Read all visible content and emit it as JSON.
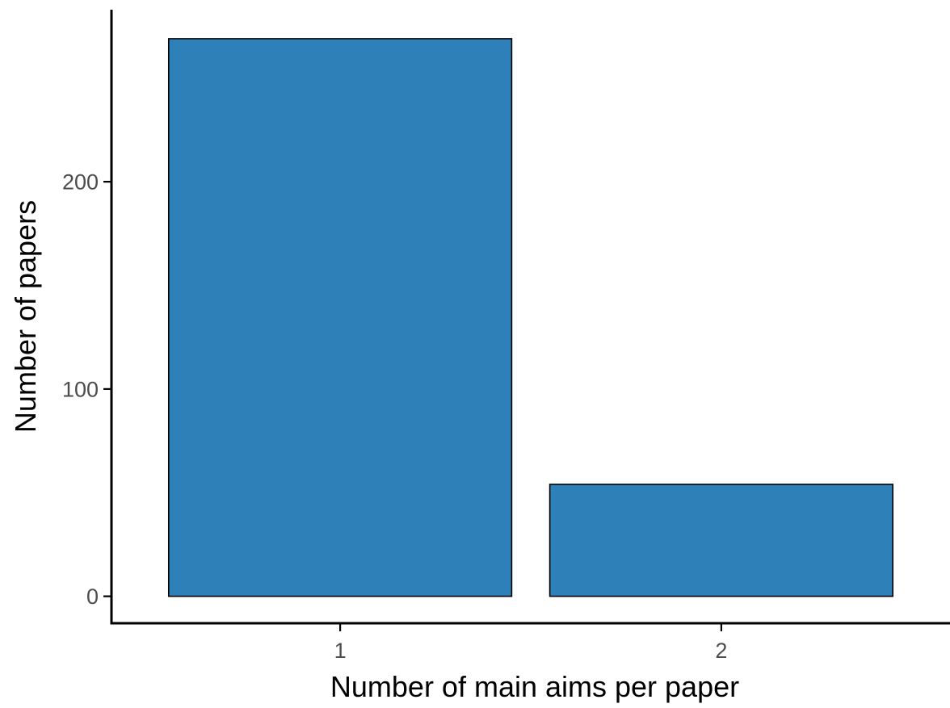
{
  "chart_data": {
    "type": "bar",
    "categories": [
      "1",
      "2"
    ],
    "values": [
      269,
      54
    ],
    "xlabel": "Number of main aims per paper",
    "ylabel": "Number of papers",
    "ylim": [
      -13,
      283
    ],
    "yticks": [
      0,
      100,
      200
    ],
    "grid": false,
    "legend": "none",
    "colors": {
      "bar_fill": "#2e80b9",
      "bar_stroke": "#000000",
      "axis": "#000000",
      "tick_label": "#4d4d4d"
    }
  }
}
